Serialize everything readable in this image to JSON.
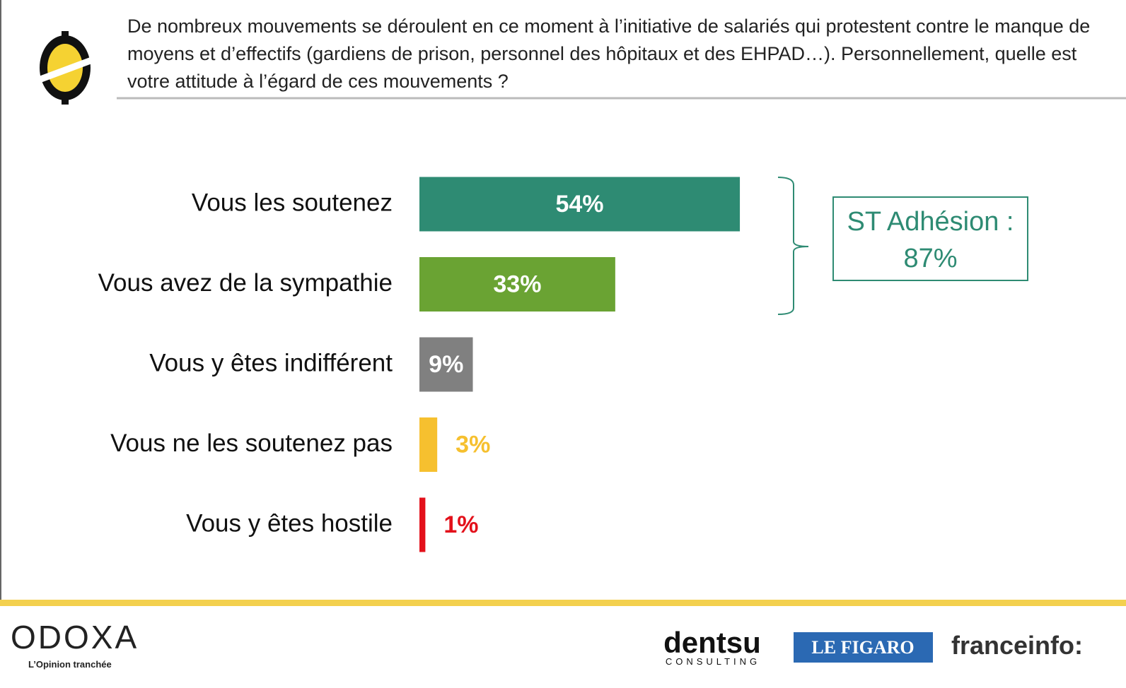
{
  "chart_data": {
    "type": "bar",
    "orientation": "horizontal",
    "title": "De nombreux mouvements se déroulent en ce moment à l’initiative de salariés qui protestent contre le manque de moyens et d’effectifs (gardiens de prison, personnel des hôpitaux et des EHPAD…). Personnellement, quelle est votre attitude à l’égard de ces mouvements ?",
    "categories": [
      "Vous les soutenez",
      "Vous avez de la sympathie",
      "Vous y êtes indifférent",
      "Vous ne les soutenez pas",
      "Vous y êtes hostile"
    ],
    "values": [
      54,
      33,
      9,
      3,
      1
    ],
    "value_labels": [
      "54%",
      "33%",
      "9%",
      "3%",
      "1%"
    ],
    "colors": [
      "#2e8b73",
      "#6aa333",
      "#808080",
      "#f6c02f",
      "#e3111b"
    ],
    "xlim": [
      0,
      100
    ],
    "annotation": [
      "ST Adhésion :",
      "87%"
    ],
    "annotation_color": "#2e8b73"
  },
  "footer": {
    "brand": "ODOXA",
    "tagline": "L’Opinion tranchée",
    "partner1": "dentsu",
    "partner1_sub": "CONSULTING",
    "partner2": "LE FIGARO",
    "partner3": "franceinfo:"
  }
}
